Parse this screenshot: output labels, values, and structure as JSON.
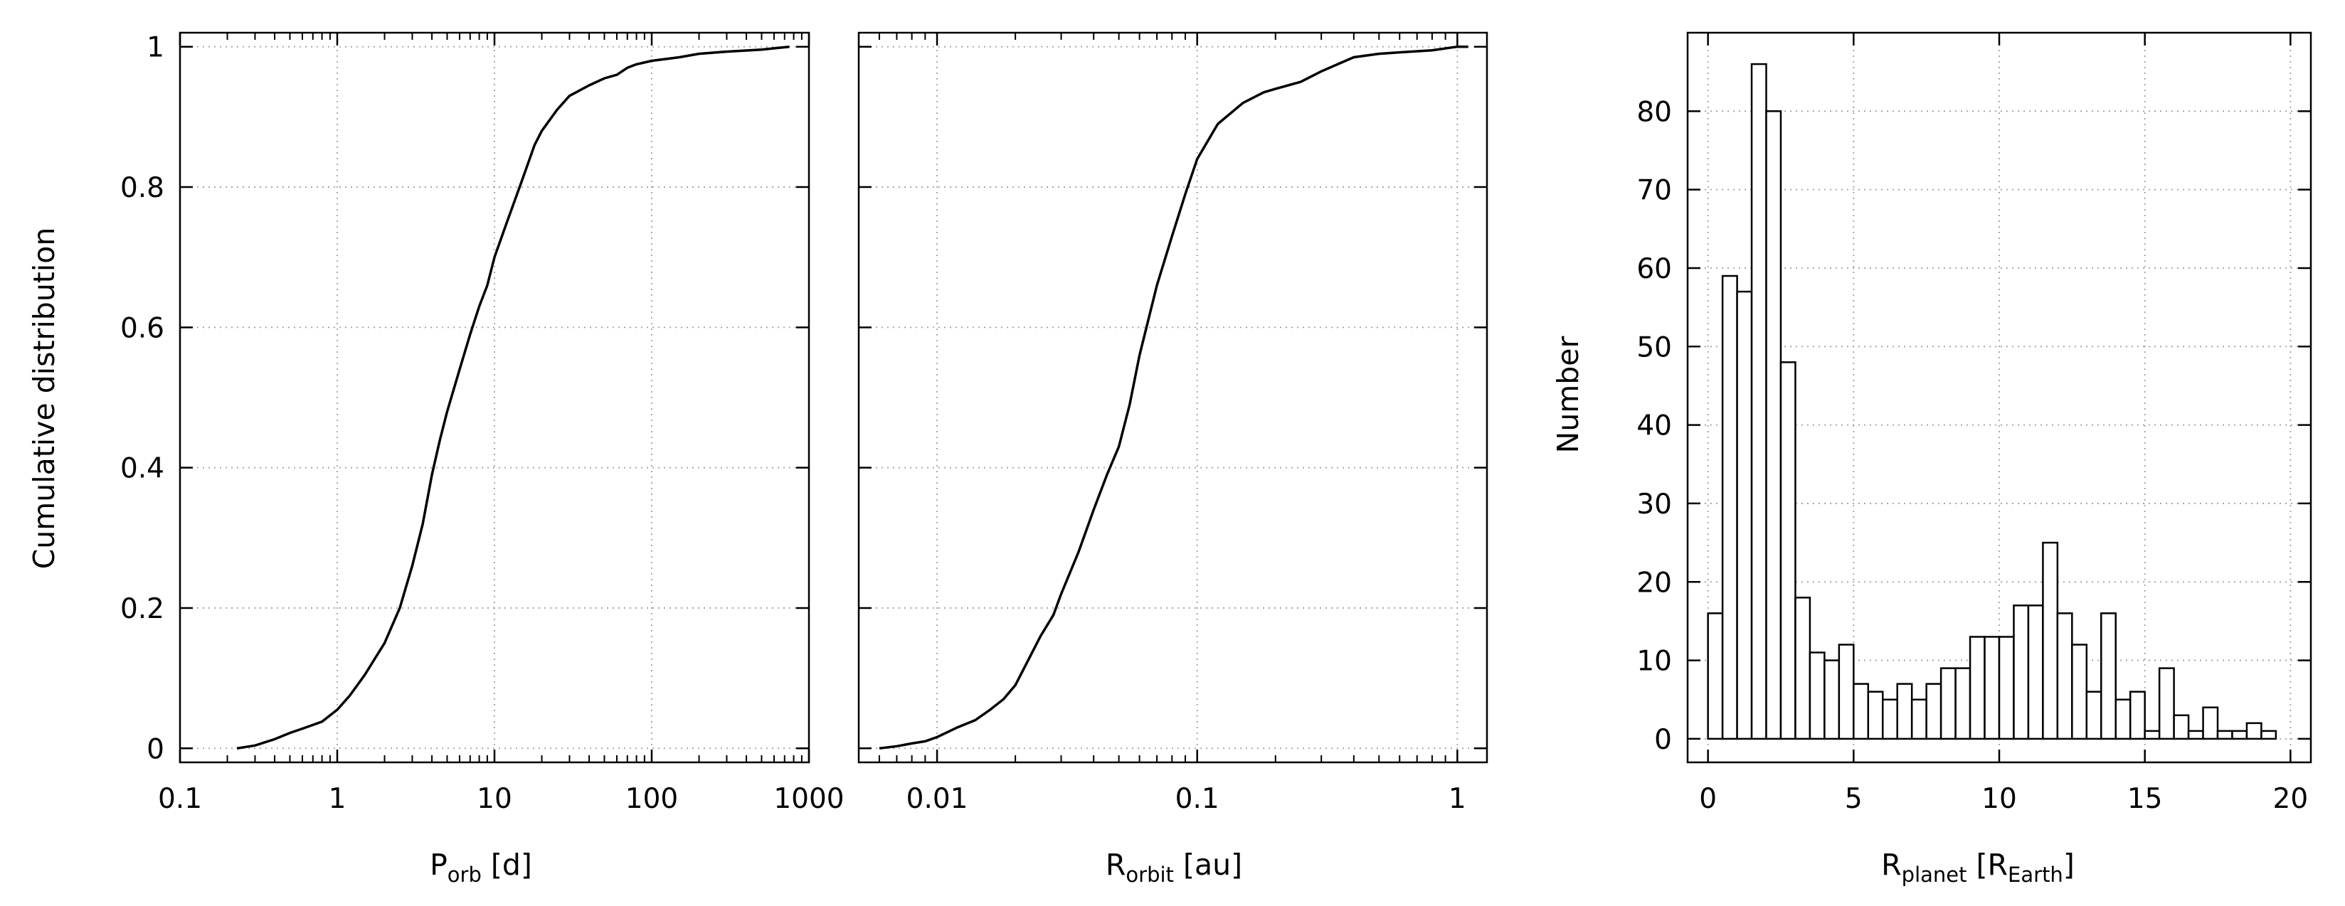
{
  "chart_data": [
    {
      "type": "line",
      "xscale": "log",
      "xlim": [
        0.1,
        1000
      ],
      "ylim": [
        -0.02,
        1.02
      ],
      "grid": true,
      "xticks": [
        "0.1",
        "1",
        "10",
        "100",
        "1000"
      ],
      "yticks": [
        "0",
        "0.2",
        "0.4",
        "0.6",
        "0.8",
        "1"
      ],
      "xlabel_main": "P",
      "xlabel_sub": "orb",
      "xlabel_unit": " [d]",
      "ylabel": "Cumulative distribution",
      "series": [
        {
          "x": [
            0.23,
            0.3,
            0.4,
            0.5,
            0.6,
            0.8,
            1.0,
            1.2,
            1.5,
            2.0,
            2.5,
            3.0,
            3.5,
            4.0,
            4.5,
            5.0,
            6.0,
            7.0,
            8.0,
            9.0,
            10.0,
            12.0,
            15.0,
            18.0,
            20.0,
            25.0,
            30.0,
            40.0,
            50.0,
            60.0,
            70.0,
            80.0,
            100.0,
            150.0,
            200.0,
            300.0,
            500.0,
            750.0
          ],
          "y": [
            0.0,
            0.004,
            0.013,
            0.022,
            0.028,
            0.038,
            0.055,
            0.075,
            0.105,
            0.15,
            0.2,
            0.26,
            0.32,
            0.39,
            0.44,
            0.48,
            0.54,
            0.59,
            0.63,
            0.66,
            0.7,
            0.75,
            0.81,
            0.86,
            0.88,
            0.91,
            0.93,
            0.945,
            0.955,
            0.96,
            0.97,
            0.975,
            0.98,
            0.985,
            0.99,
            0.993,
            0.996,
            1.0
          ]
        }
      ]
    },
    {
      "type": "line",
      "xscale": "log",
      "xlim": [
        0.005,
        1.3
      ],
      "ylim": [
        -0.02,
        1.02
      ],
      "grid": true,
      "xticks": [
        "0.01",
        "0.1",
        "1"
      ],
      "xlabel_main": "R",
      "xlabel_sub": "orbit",
      "xlabel_unit": " [au]",
      "series": [
        {
          "x": [
            0.006,
            0.007,
            0.008,
            0.009,
            0.01,
            0.012,
            0.014,
            0.016,
            0.018,
            0.02,
            0.022,
            0.025,
            0.028,
            0.03,
            0.035,
            0.04,
            0.045,
            0.05,
            0.055,
            0.06,
            0.07,
            0.08,
            0.09,
            0.1,
            0.12,
            0.15,
            0.18,
            0.2,
            0.25,
            0.3,
            0.4,
            0.5,
            0.6,
            0.8,
            1.0,
            1.1
          ],
          "y": [
            0.0,
            0.003,
            0.007,
            0.01,
            0.016,
            0.03,
            0.04,
            0.055,
            0.07,
            0.09,
            0.12,
            0.16,
            0.19,
            0.22,
            0.28,
            0.34,
            0.39,
            0.43,
            0.49,
            0.56,
            0.66,
            0.73,
            0.79,
            0.84,
            0.89,
            0.92,
            0.935,
            0.94,
            0.95,
            0.965,
            0.985,
            0.99,
            0.992,
            0.995,
            1.0,
            1.0
          ]
        }
      ]
    },
    {
      "type": "bar",
      "histogram": true,
      "xlim": [
        -0.7,
        20.7
      ],
      "ylim": [
        -3,
        90
      ],
      "grid": true,
      "xticks": [
        "0",
        "5",
        "10",
        "15",
        "20"
      ],
      "yticks": [
        "0",
        "10",
        "20",
        "30",
        "40",
        "50",
        "60",
        "70",
        "80"
      ],
      "xlabel_main": "R",
      "xlabel_sub": "planet",
      "xlabel_unit_open": " [R",
      "xlabel_unit_sub": "Earth",
      "xlabel_unit_close": "]",
      "ylabel": "Number",
      "bin_edges": [
        0.0,
        0.5,
        1.0,
        1.5,
        2.0,
        2.5,
        3.0,
        3.5,
        4.0,
        4.5,
        5.0,
        5.5,
        6.0,
        6.5,
        7.0,
        7.5,
        8.0,
        8.5,
        9.0,
        9.5,
        10.0,
        10.5,
        11.0,
        11.5,
        12.0,
        12.5,
        13.0,
        13.5,
        14.0,
        14.5,
        15.0,
        15.5,
        16.0,
        16.5,
        17.0,
        17.5,
        18.0,
        18.5,
        19.0,
        19.5
      ],
      "values": [
        16,
        59,
        57,
        86,
        80,
        48,
        18,
        11,
        10,
        12,
        7,
        6,
        5,
        7,
        5,
        7,
        9,
        9,
        13,
        13,
        13,
        17,
        17,
        25,
        16,
        12,
        6,
        16,
        5,
        6,
        1,
        9,
        3,
        1,
        4,
        1,
        1,
        2,
        1
      ]
    }
  ]
}
